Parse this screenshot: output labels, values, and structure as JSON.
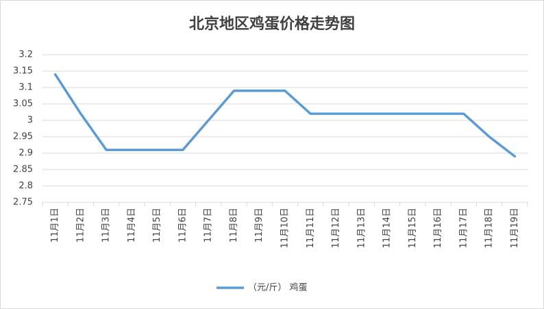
{
  "chart_data": {
    "type": "line",
    "title": "北京地区鸡蛋价格走势图",
    "categories": [
      "11月1日",
      "11月2日",
      "11月3日",
      "11月4日",
      "11月5日",
      "11月6日",
      "11月7日",
      "11月8日",
      "11月9日",
      "11月10日",
      "11月11日",
      "11月12日",
      "11月13日",
      "11月14日",
      "11月15日",
      "11月16日",
      "11月17日",
      "11月18日",
      "11月19日"
    ],
    "series": [
      {
        "name": "（元/斤） 鸡蛋",
        "color": "#5b9bd5",
        "values": [
          3.14,
          3.02,
          2.91,
          2.91,
          2.91,
          2.91,
          3.0,
          3.09,
          3.09,
          3.09,
          3.02,
          3.02,
          3.02,
          3.02,
          3.02,
          3.02,
          3.02,
          2.95,
          2.89
        ]
      }
    ],
    "ylim": [
      2.75,
      3.2
    ],
    "yticks": [
      2.75,
      2.8,
      2.85,
      2.9,
      2.95,
      3,
      3.05,
      3.1,
      3.15,
      3.2
    ],
    "grid": true,
    "legend": "bottom"
  }
}
